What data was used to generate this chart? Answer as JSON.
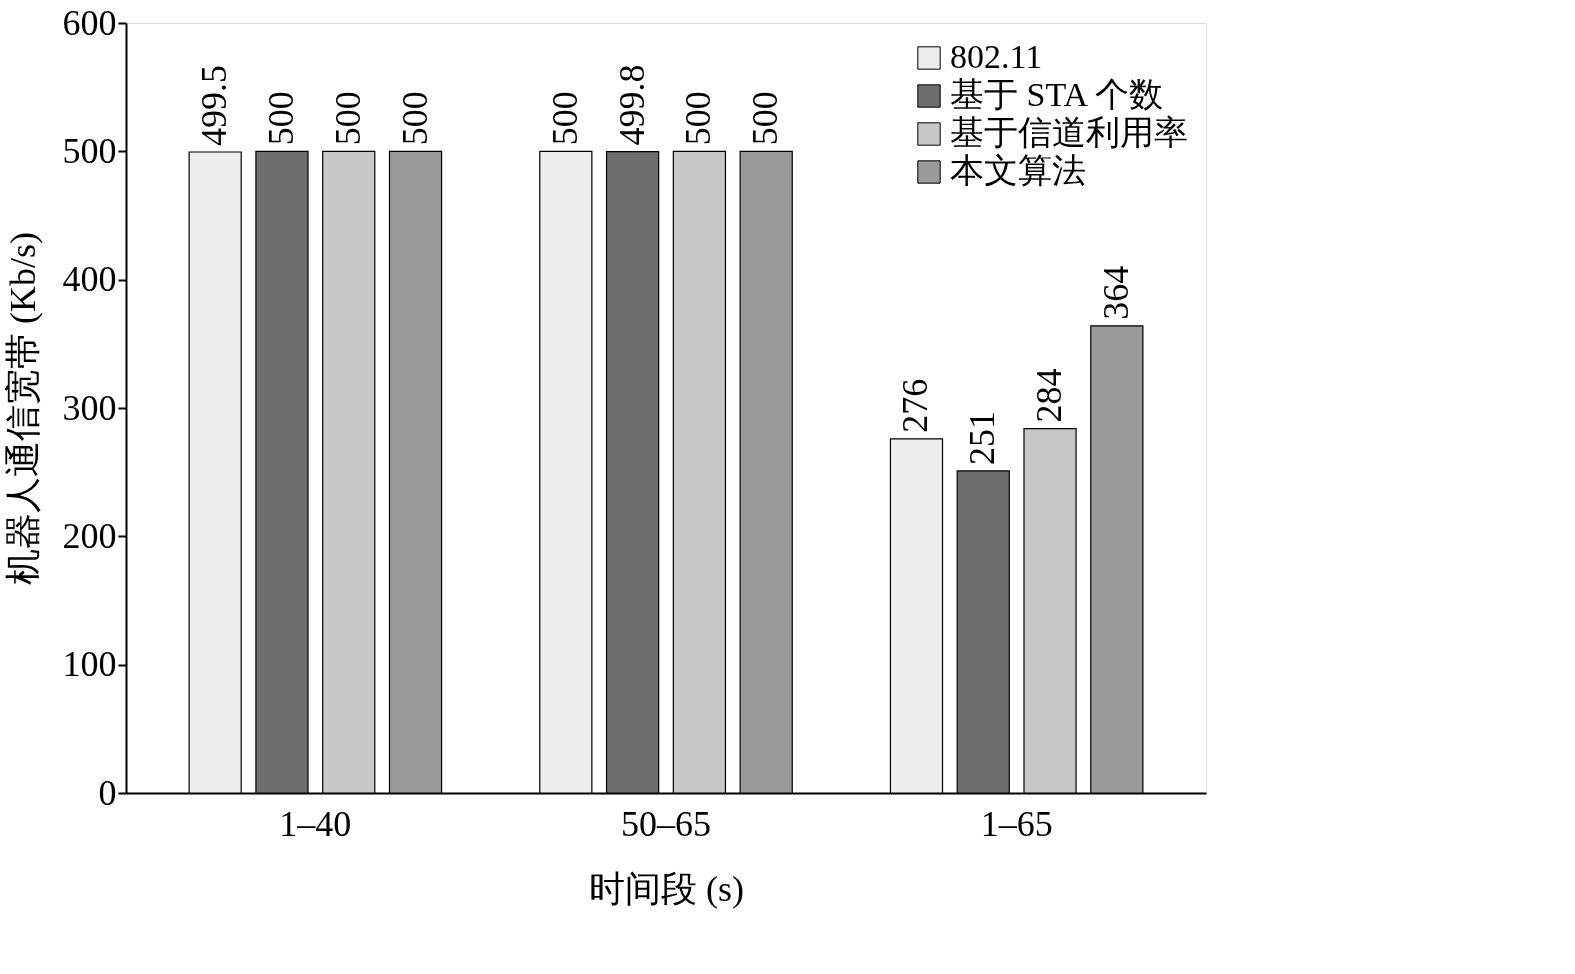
{
  "chart_data": {
    "type": "bar",
    "xlabel": "时间段 (s)",
    "ylabel": "机器人通信宽带 (Kb/s)",
    "categories": [
      "1–40",
      "50–65",
      "1–65"
    ],
    "series": [
      {
        "name": "802.11",
        "color": "#eeeeee",
        "values": [
          499.5,
          500,
          276
        ]
      },
      {
        "name": "基于 STA 个数",
        "color": "#6e6e6e",
        "values": [
          500,
          499.8,
          251
        ]
      },
      {
        "name": "基于信道利用率",
        "color": "#c8c8c8",
        "values": [
          500,
          500,
          284
        ]
      },
      {
        "name": "本文算法",
        "color": "#9a9a9a",
        "values": [
          500,
          500,
          364
        ]
      }
    ],
    "ylim": [
      0,
      600
    ],
    "yticks": [
      0,
      100,
      200,
      300,
      400,
      500,
      600
    ],
    "data_labels": true,
    "grid": false,
    "legend": "top right"
  }
}
